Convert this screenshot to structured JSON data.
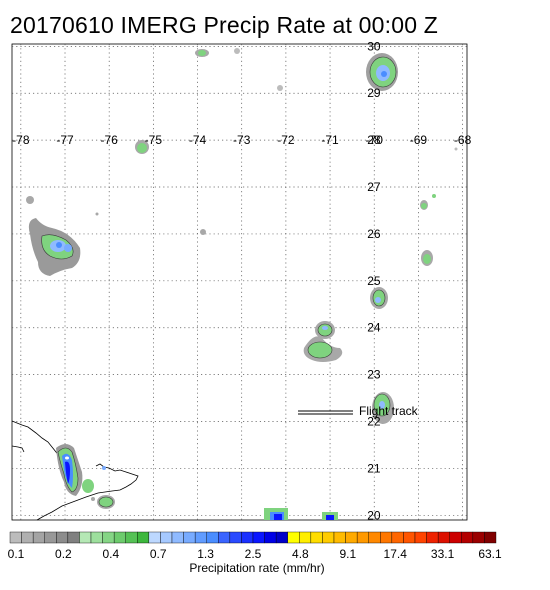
{
  "title": "20170610 IMERG Precip Rate at 00:00 Z",
  "map": {
    "lon_min": -78.2,
    "lon_max": -67.9,
    "lat_min": 19.9,
    "lat_max": 30.05,
    "lon_ticks": [
      -78,
      -77,
      -76,
      -75,
      -74,
      -73,
      -72,
      -71,
      -70,
      -69,
      -68
    ],
    "lon_tick_text": [
      "-78",
      "-77",
      "-76",
      "-75",
      "-74",
      "-73",
      "-72",
      "-71",
      "-70",
      "-69",
      "-68"
    ],
    "lat_ticks": [
      20,
      21,
      22,
      23,
      24,
      25,
      26,
      27,
      28,
      29,
      30
    ],
    "lat_tick_text": [
      "20",
      "21",
      "22",
      "23",
      "24",
      "25",
      "26",
      "27",
      "28",
      "29",
      "30"
    ],
    "legend": {
      "label": "Flight track"
    }
  },
  "colorbar": {
    "colors": [
      "#bcbcbc",
      "#b0b0b0",
      "#a4a4a4",
      "#989898",
      "#8c8c8c",
      "#808080",
      "#b5e8b5",
      "#9ddf9d",
      "#85d585",
      "#6dcb6d",
      "#55c155",
      "#3db73d",
      "#bdd8ff",
      "#a6c9ff",
      "#8fbaff",
      "#78abff",
      "#619cff",
      "#4a8dff",
      "#3a64ff",
      "#2a4aff",
      "#1a30ff",
      "#0a16ff",
      "#0000e6",
      "#0000c8",
      "#ffff00",
      "#ffee00",
      "#ffdd00",
      "#ffcc00",
      "#ffbb00",
      "#ffaa00",
      "#ff9900",
      "#ff8800",
      "#ff7700",
      "#ff6600",
      "#ff5500",
      "#ff4400",
      "#ee2200",
      "#dd1100",
      "#cc0000",
      "#b30000",
      "#9a0000",
      "#800000"
    ],
    "tick_labels": [
      "0.1",
      "0.2",
      "0.4",
      "0.7",
      "1.3",
      "2.5",
      "4.8",
      "9.1",
      "17.4",
      "33.1",
      "63.1"
    ],
    "label": "Precipitation rate (mm/hr)"
  }
}
